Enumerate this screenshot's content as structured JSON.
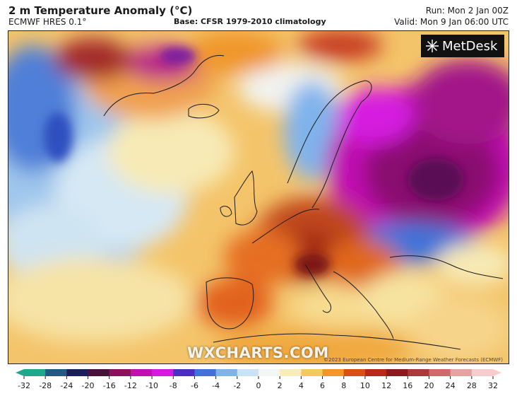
{
  "header": {
    "title": "2 m Temperature Anomaly (°C)",
    "model": "ECMWF HRES 0.1°",
    "base": "Base: CFSR 1979-2010 climatology",
    "run": "Run: Mon 2 Jan 00Z",
    "valid": "Valid: Mon 9 Jan 06:00 UTC"
  },
  "brand": {
    "name": "MetDesk",
    "icon": "metdesk-logo-icon"
  },
  "watermark": "WXCHARTS.COM",
  "copyright": "©2023 European Centre for Medium-Range Weather Forecasts (ECMWF)",
  "colorbar": {
    "ticks": [
      "-32",
      "-28",
      "-24",
      "-20",
      "-16",
      "-12",
      "-10",
      "-8",
      "-6",
      "-4",
      "-2",
      "0",
      "2",
      "4",
      "6",
      "8",
      "10",
      "12",
      "16",
      "20",
      "24",
      "28",
      "32"
    ],
    "colors": [
      "#1fa88a",
      "#1e5a8a",
      "#1a1f5c",
      "#4a0f3a",
      "#8a1060",
      "#c010b0",
      "#d51ae0",
      "#4a2fc0",
      "#3f73d8",
      "#7fb3ec",
      "#c9e3f6",
      "#f2f6f4",
      "#f8ecb8",
      "#f5c860",
      "#f0962a",
      "#d85018",
      "#b82a16",
      "#8a1a1e",
      "#a83a3a",
      "#cf6a6a",
      "#e8a0a0",
      "#f6cccc"
    ]
  }
}
